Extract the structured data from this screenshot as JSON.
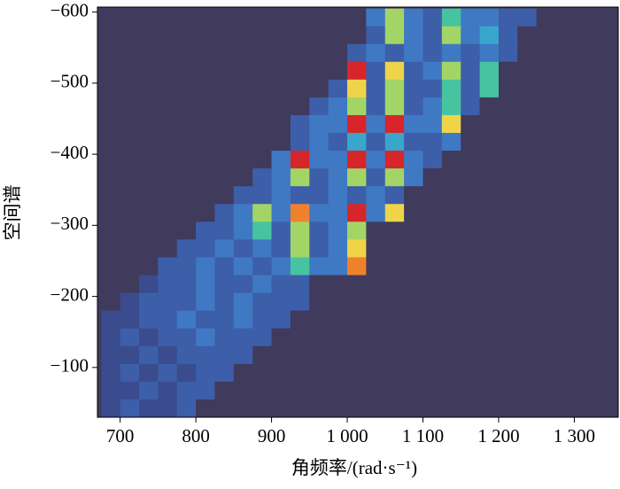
{
  "chart_data": {
    "type": "heatmap",
    "xlabel": "角频率/(rad·s⁻¹)",
    "ylabel": "空间谱",
    "xlim": [
      670,
      1358
    ],
    "ylim": [
      -30,
      -607
    ],
    "xticks": [
      700,
      800,
      900,
      {
        "value": 1000,
        "label": "1 000"
      },
      {
        "value": 1100,
        "label": "1 100"
      },
      {
        "value": 1200,
        "label": "1 200"
      },
      {
        "value": 1300,
        "label": "1 300"
      }
    ],
    "yticks": [
      {
        "value": -600,
        "label": "−600"
      },
      {
        "value": -500,
        "label": "−500"
      },
      {
        "value": -400,
        "label": "−400"
      },
      {
        "value": -300,
        "label": "−300"
      },
      {
        "value": -200,
        "label": "−200"
      },
      {
        "value": -100,
        "label": "−100"
      }
    ],
    "x_bins": [
      675,
      700,
      725,
      750,
      775,
      800,
      825,
      850,
      875,
      900,
      925,
      950,
      975,
      1000,
      1025,
      1050,
      1075,
      1100,
      1125,
      1150,
      1175,
      1200,
      1225,
      1250,
      1275,
      1300,
      1325,
      1350
    ],
    "y_bins": [
      -605,
      -580,
      -555,
      -530,
      -505,
      -480,
      -455,
      -430,
      -405,
      -380,
      -355,
      -330,
      -305,
      -280,
      -255,
      -230,
      -205,
      -180,
      -155,
      -130,
      -105,
      -80,
      -55,
      -30
    ],
    "zlim": [
      0,
      9
    ],
    "colorscale": [
      "#403a5d",
      "#3a4b8e",
      "#3d5ea8",
      "#3f79c4",
      "#3aa6cc",
      "#48c3a0",
      "#a3d566",
      "#efd44a",
      "#f0812c",
      "#d6262b"
    ],
    "z": [
      [
        0,
        0,
        0,
        0,
        0,
        0,
        0,
        0,
        0,
        0,
        0,
        0,
        0,
        0,
        3,
        6,
        3,
        2,
        5,
        3,
        3,
        2,
        2,
        0,
        0,
        0,
        0
      ],
      [
        0,
        0,
        0,
        0,
        0,
        0,
        0,
        0,
        0,
        0,
        0,
        0,
        0,
        0,
        2,
        6,
        3,
        2,
        6,
        3,
        4,
        2,
        0,
        0,
        0,
        0,
        0
      ],
      [
        0,
        0,
        0,
        0,
        0,
        0,
        0,
        0,
        0,
        0,
        0,
        0,
        0,
        2,
        3,
        2,
        3,
        2,
        3,
        2,
        3,
        2,
        0,
        0,
        0,
        0,
        0
      ],
      [
        0,
        0,
        0,
        0,
        0,
        0,
        0,
        0,
        0,
        0,
        0,
        0,
        0,
        9,
        2,
        7,
        2,
        3,
        6,
        2,
        5,
        0,
        0,
        0,
        0,
        0,
        0
      ],
      [
        0,
        0,
        0,
        0,
        0,
        0,
        0,
        0,
        0,
        0,
        0,
        0,
        2,
        7,
        2,
        6,
        2,
        2,
        5,
        2,
        5,
        0,
        0,
        0,
        0,
        0,
        0
      ],
      [
        0,
        0,
        0,
        0,
        0,
        0,
        0,
        0,
        0,
        0,
        0,
        2,
        3,
        6,
        2,
        6,
        2,
        3,
        5,
        2,
        0,
        0,
        0,
        0,
        0,
        0,
        0
      ],
      [
        0,
        0,
        0,
        0,
        0,
        0,
        0,
        0,
        0,
        0,
        2,
        3,
        3,
        9,
        3,
        9,
        3,
        3,
        7,
        0,
        0,
        0,
        0,
        0,
        0,
        0,
        0
      ],
      [
        0,
        0,
        0,
        0,
        0,
        0,
        0,
        0,
        0,
        0,
        2,
        3,
        2,
        4,
        2,
        4,
        2,
        2,
        3,
        0,
        0,
        0,
        0,
        0,
        0,
        0,
        0
      ],
      [
        0,
        0,
        0,
        0,
        0,
        0,
        0,
        0,
        0,
        3,
        9,
        3,
        3,
        9,
        3,
        9,
        3,
        2,
        0,
        0,
        0,
        0,
        0,
        0,
        0,
        0,
        0
      ],
      [
        0,
        0,
        0,
        0,
        0,
        0,
        0,
        0,
        2,
        3,
        6,
        2,
        3,
        6,
        2,
        6,
        3,
        0,
        0,
        0,
        0,
        0,
        0,
        0,
        0,
        0,
        0
      ],
      [
        0,
        0,
        0,
        0,
        0,
        0,
        0,
        2,
        2,
        3,
        2,
        2,
        3,
        2,
        3,
        2,
        0,
        0,
        0,
        0,
        0,
        0,
        0,
        0,
        0,
        0,
        0
      ],
      [
        0,
        0,
        0,
        0,
        0,
        0,
        2,
        3,
        6,
        3,
        8,
        3,
        3,
        9,
        3,
        7,
        0,
        0,
        0,
        0,
        0,
        0,
        0,
        0,
        0,
        0,
        0
      ],
      [
        0,
        0,
        0,
        0,
        0,
        2,
        2,
        3,
        5,
        2,
        6,
        2,
        3,
        6,
        0,
        0,
        0,
        0,
        0,
        0,
        0,
        0,
        0,
        0,
        0,
        0,
        0
      ],
      [
        0,
        0,
        0,
        0,
        2,
        2,
        3,
        2,
        3,
        2,
        6,
        2,
        3,
        7,
        0,
        0,
        0,
        0,
        0,
        0,
        0,
        0,
        0,
        0,
        0,
        0,
        0
      ],
      [
        0,
        0,
        0,
        2,
        2,
        3,
        2,
        3,
        2,
        3,
        5,
        3,
        3,
        8,
        0,
        0,
        0,
        0,
        0,
        0,
        0,
        0,
        0,
        0,
        0,
        0,
        0
      ],
      [
        0,
        0,
        1,
        2,
        2,
        3,
        2,
        2,
        3,
        2,
        2,
        0,
        0,
        0,
        0,
        0,
        0,
        0,
        0,
        0,
        0,
        0,
        0,
        0,
        0,
        0,
        0
      ],
      [
        0,
        1,
        2,
        2,
        2,
        3,
        2,
        3,
        2,
        2,
        2,
        0,
        0,
        0,
        0,
        0,
        0,
        0,
        0,
        0,
        0,
        0,
        0,
        0,
        0,
        0,
        0
      ],
      [
        1,
        1,
        2,
        2,
        3,
        2,
        2,
        3,
        2,
        2,
        0,
        0,
        0,
        0,
        0,
        0,
        0,
        0,
        0,
        0,
        0,
        0,
        0,
        0,
        0,
        0,
        0
      ],
      [
        1,
        2,
        1,
        2,
        2,
        3,
        2,
        2,
        2,
        0,
        0,
        0,
        0,
        0,
        0,
        0,
        0,
        0,
        0,
        0,
        0,
        0,
        0,
        0,
        0,
        0,
        0
      ],
      [
        1,
        1,
        2,
        1,
        2,
        2,
        2,
        2,
        0,
        0,
        0,
        0,
        0,
        0,
        0,
        0,
        0,
        0,
        0,
        0,
        0,
        0,
        0,
        0,
        0,
        0,
        0
      ],
      [
        1,
        2,
        1,
        2,
        1,
        2,
        2,
        0,
        0,
        0,
        0,
        0,
        0,
        0,
        0,
        0,
        0,
        0,
        0,
        0,
        0,
        0,
        0,
        0,
        0,
        0,
        0
      ],
      [
        1,
        1,
        2,
        1,
        2,
        2,
        0,
        0,
        0,
        0,
        0,
        0,
        0,
        0,
        0,
        0,
        0,
        0,
        0,
        0,
        0,
        0,
        0,
        0,
        0,
        0,
        0
      ],
      [
        1,
        2,
        1,
        1,
        2,
        0,
        0,
        0,
        0,
        0,
        0,
        0,
        0,
        0,
        0,
        0,
        0,
        0,
        0,
        0,
        0,
        0,
        0,
        0,
        0,
        0,
        0
      ]
    ]
  }
}
